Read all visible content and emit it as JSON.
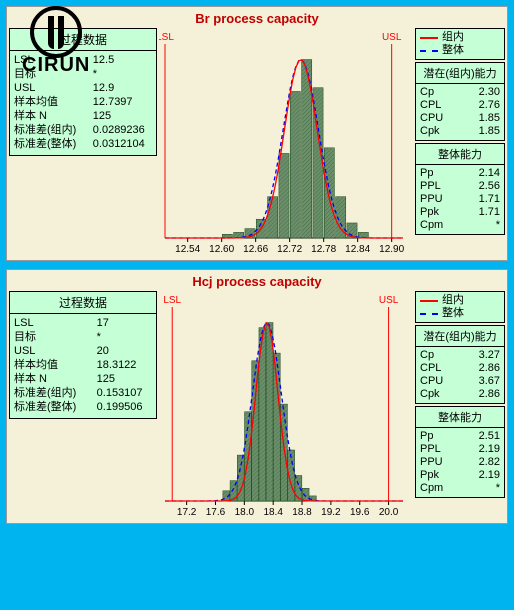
{
  "logo_text": "CIRUN",
  "charts": [
    {
      "title": "Br process capacity",
      "process_header": "过程数据",
      "process": [
        [
          "LSL",
          "12.5"
        ],
        [
          "目标",
          "*"
        ],
        [
          "USL",
          "12.9"
        ],
        [
          "样本均值",
          "12.7397"
        ],
        [
          "样本 N",
          "125"
        ],
        [
          "标准差(组内)",
          "0.0289236"
        ],
        [
          "标准差(整体)",
          "0.0312104"
        ]
      ],
      "legend": [
        {
          "label": "组内",
          "color": "#ff0000",
          "dash": "0"
        },
        {
          "label": "整体",
          "color": "#0000ff",
          "dash": "4 3"
        }
      ],
      "within_hdr": "潜在(组内)能力",
      "within": [
        [
          "Cp",
          "2.30"
        ],
        [
          "CPL",
          "2.76"
        ],
        [
          "CPU",
          "1.85"
        ],
        [
          "Cpk",
          "1.85"
        ]
      ],
      "overall_hdr": "整体能力",
      "overall": [
        [
          "Pp",
          "2.14"
        ],
        [
          "PPL",
          "2.56"
        ],
        [
          "PPU",
          "1.71"
        ],
        [
          "Ppk",
          "1.71"
        ],
        [
          "Cpm",
          "*"
        ]
      ],
      "plot": {
        "bg": "#f5f0d8",
        "bar_fill": "#6b8e6b",
        "bar_hatch": "#1a4a1a",
        "curve1_color": "#ff0000",
        "curve2_color": "#0000ff",
        "spec_line_color": "#ff0000",
        "axis_color": "#000",
        "lsl_label": "LSL",
        "usl_label": "USL",
        "xmin": 12.5,
        "xmax": 12.92,
        "lsl": 12.5,
        "usl": 12.9,
        "mean": 12.7397,
        "sd_within": 0.0289236,
        "sd_overall": 0.0312104,
        "ticks": [
          "12.54",
          "12.60",
          "12.66",
          "12.72",
          "12.78",
          "12.84",
          "12.90"
        ],
        "tick_vals": [
          12.54,
          12.6,
          12.66,
          12.72,
          12.78,
          12.84,
          12.9
        ],
        "bars": [
          {
            "x": 12.61,
            "h": 0.02
          },
          {
            "x": 12.63,
            "h": 0.03
          },
          {
            "x": 12.65,
            "h": 0.05
          },
          {
            "x": 12.67,
            "h": 0.1
          },
          {
            "x": 12.69,
            "h": 0.22
          },
          {
            "x": 12.71,
            "h": 0.45
          },
          {
            "x": 12.73,
            "h": 0.78
          },
          {
            "x": 12.75,
            "h": 0.95
          },
          {
            "x": 12.77,
            "h": 0.8
          },
          {
            "x": 12.79,
            "h": 0.48
          },
          {
            "x": 12.81,
            "h": 0.22
          },
          {
            "x": 12.83,
            "h": 0.08
          },
          {
            "x": 12.85,
            "h": 0.03
          }
        ],
        "bar_w": 0.018
      }
    },
    {
      "title": "Hcj process capacity",
      "process_header": "过程数据",
      "process": [
        [
          "LSL",
          "17"
        ],
        [
          "目标",
          "*"
        ],
        [
          "USL",
          "20"
        ],
        [
          "样本均值",
          "18.3122"
        ],
        [
          "样本 N",
          "125"
        ],
        [
          "标准差(组内)",
          "0.153107"
        ],
        [
          "标准差(整体)",
          "0.199506"
        ]
      ],
      "legend": [
        {
          "label": "组内",
          "color": "#ff0000",
          "dash": "0"
        },
        {
          "label": "整体",
          "color": "#0000ff",
          "dash": "4 3"
        }
      ],
      "within_hdr": "潜在(组内)能力",
      "within": [
        [
          "Cp",
          "3.27"
        ],
        [
          "CPL",
          "2.86"
        ],
        [
          "CPU",
          "3.67"
        ],
        [
          "Cpk",
          "2.86"
        ]
      ],
      "overall_hdr": "整体能力",
      "overall": [
        [
          "Pp",
          "2.51"
        ],
        [
          "PPL",
          "2.19"
        ],
        [
          "PPU",
          "2.82"
        ],
        [
          "Ppk",
          "2.19"
        ],
        [
          "Cpm",
          "*"
        ]
      ],
      "plot": {
        "bg": "#f5f0d8",
        "bar_fill": "#6b8e6b",
        "bar_hatch": "#1a4a1a",
        "curve1_color": "#ff0000",
        "curve2_color": "#0000ff",
        "spec_line_color": "#ff0000",
        "axis_color": "#000",
        "lsl_label": "LSL",
        "usl_label": "USL",
        "xmin": 16.9,
        "xmax": 20.2,
        "lsl": 17.0,
        "usl": 20.0,
        "mean": 18.3122,
        "sd_within": 0.153107,
        "sd_overall": 0.199506,
        "ticks": [
          "17.2",
          "17.6",
          "18.0",
          "18.4",
          "18.8",
          "19.2",
          "19.6",
          "20.0"
        ],
        "tick_vals": [
          17.2,
          17.6,
          18.0,
          18.4,
          18.8,
          19.2,
          19.6,
          20.0
        ],
        "bars": [
          {
            "x": 17.75,
            "h": 0.04
          },
          {
            "x": 17.85,
            "h": 0.08
          },
          {
            "x": 17.95,
            "h": 0.18
          },
          {
            "x": 18.05,
            "h": 0.35
          },
          {
            "x": 18.15,
            "h": 0.55
          },
          {
            "x": 18.25,
            "h": 0.68
          },
          {
            "x": 18.35,
            "h": 0.7
          },
          {
            "x": 18.45,
            "h": 0.58
          },
          {
            "x": 18.55,
            "h": 0.38
          },
          {
            "x": 18.65,
            "h": 0.2
          },
          {
            "x": 18.75,
            "h": 0.1
          },
          {
            "x": 18.85,
            "h": 0.05
          },
          {
            "x": 18.95,
            "h": 0.02
          }
        ],
        "bar_w": 0.095
      }
    }
  ]
}
